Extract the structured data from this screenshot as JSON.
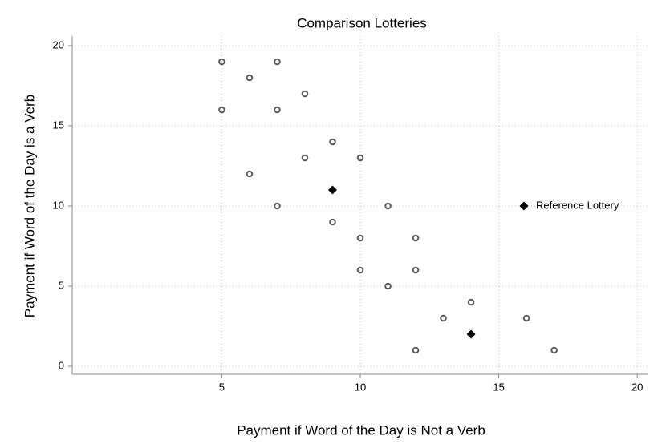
{
  "chart_data": {
    "type": "scatter",
    "title": "Comparison Lotteries",
    "x_label": "Payment if Word of the Day is Not a Verb",
    "y_label": "Payment if Word of the Day is a Verb",
    "xlim": [
      -0.4,
      20.4
    ],
    "ylim": [
      -0.5,
      20.6
    ],
    "xticks": [
      5,
      10,
      15,
      20
    ],
    "yticks": [
      0,
      5,
      10,
      15,
      20
    ],
    "grid": true,
    "legend": "right",
    "series": [
      {
        "color": "#5a5a5a",
        "marker": "circle",
        "x": [
          5,
          7,
          6,
          8,
          5,
          7,
          9,
          8,
          10,
          6,
          7,
          11,
          9,
          10,
          12,
          10,
          12,
          11,
          14,
          13,
          16,
          12,
          17
        ],
        "values": [
          19,
          19,
          18,
          17,
          16,
          16,
          14,
          13,
          13,
          12,
          10,
          10,
          9,
          8,
          8,
          6,
          6,
          5,
          4,
          3,
          3,
          1,
          1
        ]
      },
      {
        "name": "Reference Lottery",
        "color": "#000000",
        "marker": "diamond",
        "x": [
          9,
          14
        ],
        "values": [
          11,
          2
        ]
      }
    ]
  }
}
